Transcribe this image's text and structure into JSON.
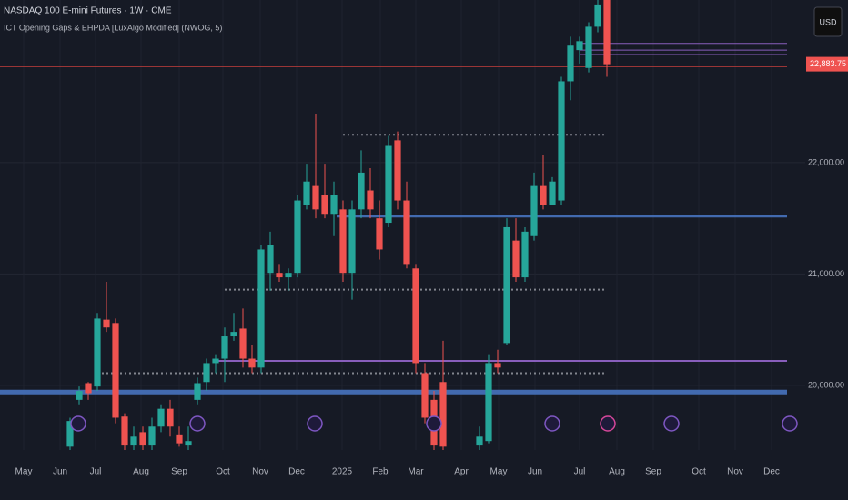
{
  "chart_data": {
    "type": "candlestick",
    "title": "NASDAQ 100 E-mini Futures · 1W · CME",
    "subtitle": "ICT Opening Gaps & EHPDA [LuxAlgo Modified] (NWOG, 5)",
    "currency": "USD",
    "up_color": "#26a69a",
    "down_color": "#ef5350",
    "x": [
      0,
      1,
      2,
      3,
      4,
      5,
      6,
      7,
      8,
      9,
      10,
      11,
      12,
      13,
      14,
      15,
      16,
      17,
      18,
      19,
      20,
      21,
      22,
      23,
      24,
      25,
      26,
      27,
      28,
      29,
      30,
      31,
      32,
      33,
      34,
      35,
      36,
      37,
      38,
      39,
      40,
      41,
      45,
      46,
      47,
      48,
      49,
      50,
      51,
      52,
      53,
      54,
      55,
      56,
      57,
      58,
      59
    ],
    "open": [
      19450,
      19870,
      20020,
      19990,
      20590,
      20560,
      19720,
      19460,
      19580,
      19460,
      19630,
      19790,
      19560,
      19460,
      19870,
      20030,
      20200,
      20240,
      20440,
      20510,
      20240,
      20160,
      21010,
      21010,
      20970,
      21010,
      21620,
      21790,
      21710,
      21540,
      21580,
      21010,
      21580,
      21750,
      21500,
      21460,
      22200,
      21660,
      21050,
      20110,
      19870,
      20030,
      19460,
      19500,
      20200,
      20380,
      21300,
      20970,
      21340,
      21790,
      21620,
      21660,
      22730,
      23010,
      22850,
      23220,
      23460
    ],
    "high": [
      19710,
      19990,
      20030,
      20650,
      20930,
      20600,
      19750,
      19630,
      19630,
      19710,
      19830,
      19870,
      19630,
      19630,
      20070,
      20240,
      20280,
      20520,
      20650,
      20690,
      20360,
      21260,
      21380,
      21090,
      21050,
      21710,
      21990,
      22440,
      21990,
      21830,
      21660,
      21660,
      22110,
      21950,
      21660,
      22240,
      22280,
      21830,
      21090,
      20200,
      19950,
      20400,
      19630,
      20280,
      20320,
      21500,
      21500,
      21420,
      21910,
      22070,
      21870,
      22770,
      23130,
      23130,
      23260,
      23460,
      23460
    ],
    "low": [
      19420,
      19830,
      19870,
      19950,
      20480,
      19660,
      19420,
      19420,
      19420,
      19420,
      19580,
      19540,
      19450,
      19420,
      19830,
      19950,
      20110,
      20030,
      20400,
      20160,
      20110,
      20110,
      20850,
      20930,
      20850,
      20970,
      21580,
      21500,
      21500,
      21340,
      20930,
      20770,
      21500,
      21500,
      21130,
      21420,
      21580,
      21050,
      20110,
      19660,
      19420,
      19420,
      19420,
      19480,
      20110,
      20360,
      20930,
      20930,
      21300,
      21580,
      21620,
      21620,
      22560,
      22890,
      22810,
      23170,
      22770
    ],
    "close": [
      19680,
      19950,
      19930,
      20600,
      20520,
      19710,
      19460,
      19540,
      19460,
      19630,
      19790,
      19630,
      19480,
      19500,
      20020,
      20200,
      20240,
      20440,
      20480,
      20240,
      20160,
      21220,
      21260,
      20970,
      21010,
      21660,
      21830,
      21580,
      21540,
      21710,
      21010,
      21580,
      21910,
      21580,
      21220,
      22150,
      21660,
      21090,
      20200,
      19710,
      19460,
      19450,
      19540,
      20200,
      20160,
      21420,
      20970,
      21380,
      21790,
      21620,
      21830,
      22730,
      23050,
      23090,
      23220,
      23420,
      22883.75
    ],
    "last_price_label": "22,883.75",
    "levels": [
      {
        "value": 21520,
        "start": 29.3,
        "end": 78.8,
        "color": "#4a78c8",
        "style": "solid",
        "width": 3
      },
      {
        "value": 20220,
        "start": 15.8,
        "end": 78.8,
        "color": "#9c6ad6",
        "style": "solid",
        "width": 2
      },
      {
        "value": 19940,
        "start": -7.7,
        "end": 78.8,
        "color": "#4a78c8",
        "style": "solid",
        "width": 5
      },
      {
        "value": 22250,
        "start": 30,
        "end": 58.8,
        "color": "#9598a1",
        "style": "dotted",
        "width": 2
      },
      {
        "value": 20860,
        "start": 17,
        "end": 58.8,
        "color": "#9598a1",
        "style": "dotted",
        "width": 2
      },
      {
        "value": 20110,
        "start": 3.5,
        "end": 58.8,
        "color": "#9598a1",
        "style": "dotted",
        "width": 2
      },
      {
        "value": 23070,
        "start": 56,
        "end": 78.8,
        "color": "#9c6ad6",
        "style": "solid",
        "width": 1
      },
      {
        "value": 23010,
        "start": 56,
        "end": 78.8,
        "color": "#9c6ad6",
        "style": "solid",
        "width": 1
      },
      {
        "value": 22970,
        "start": 56,
        "end": 78.8,
        "color": "#9c6ad6",
        "style": "solid",
        "width": 1
      },
      {
        "value": 22860,
        "start": -7.7,
        "end": 78.8,
        "color": "#b23a3a",
        "style": "solid",
        "width": 1
      }
    ],
    "xlim": [
      -7.7,
      80.8
    ],
    "xticks": [
      {
        "value": -5.1,
        "label": "May"
      },
      {
        "value": -1.1,
        "label": "Jun"
      },
      {
        "value": 2.8,
        "label": "Jul"
      },
      {
        "value": 7.8,
        "label": "Aug"
      },
      {
        "value": 12,
        "label": "Sep"
      },
      {
        "value": 16.8,
        "label": "Oct"
      },
      {
        "value": 20.9,
        "label": "Nov"
      },
      {
        "value": 24.9,
        "label": "Dec"
      },
      {
        "value": 29.9,
        "label": "2025"
      },
      {
        "value": 34.1,
        "label": "Feb"
      },
      {
        "value": 38,
        "label": "Mar"
      },
      {
        "value": 43,
        "label": "Apr"
      },
      {
        "value": 47.1,
        "label": "May"
      },
      {
        "value": 51.1,
        "label": "Jun"
      },
      {
        "value": 56,
        "label": "Jul"
      },
      {
        "value": 60.1,
        "label": "Aug"
      },
      {
        "value": 64.1,
        "label": "Sep"
      },
      {
        "value": 69.1,
        "label": "Oct"
      },
      {
        "value": 73.1,
        "label": "Nov"
      },
      {
        "value": 77.1,
        "label": "Dec"
      }
    ],
    "ylim": [
      19420,
      23460
    ],
    "yticks": [
      {
        "value": 20000,
        "label": "20,000.00"
      },
      {
        "value": 21000,
        "label": "21,000.00"
      },
      {
        "value": 22000,
        "label": "22,000.00"
      }
    ],
    "grid": true
  }
}
